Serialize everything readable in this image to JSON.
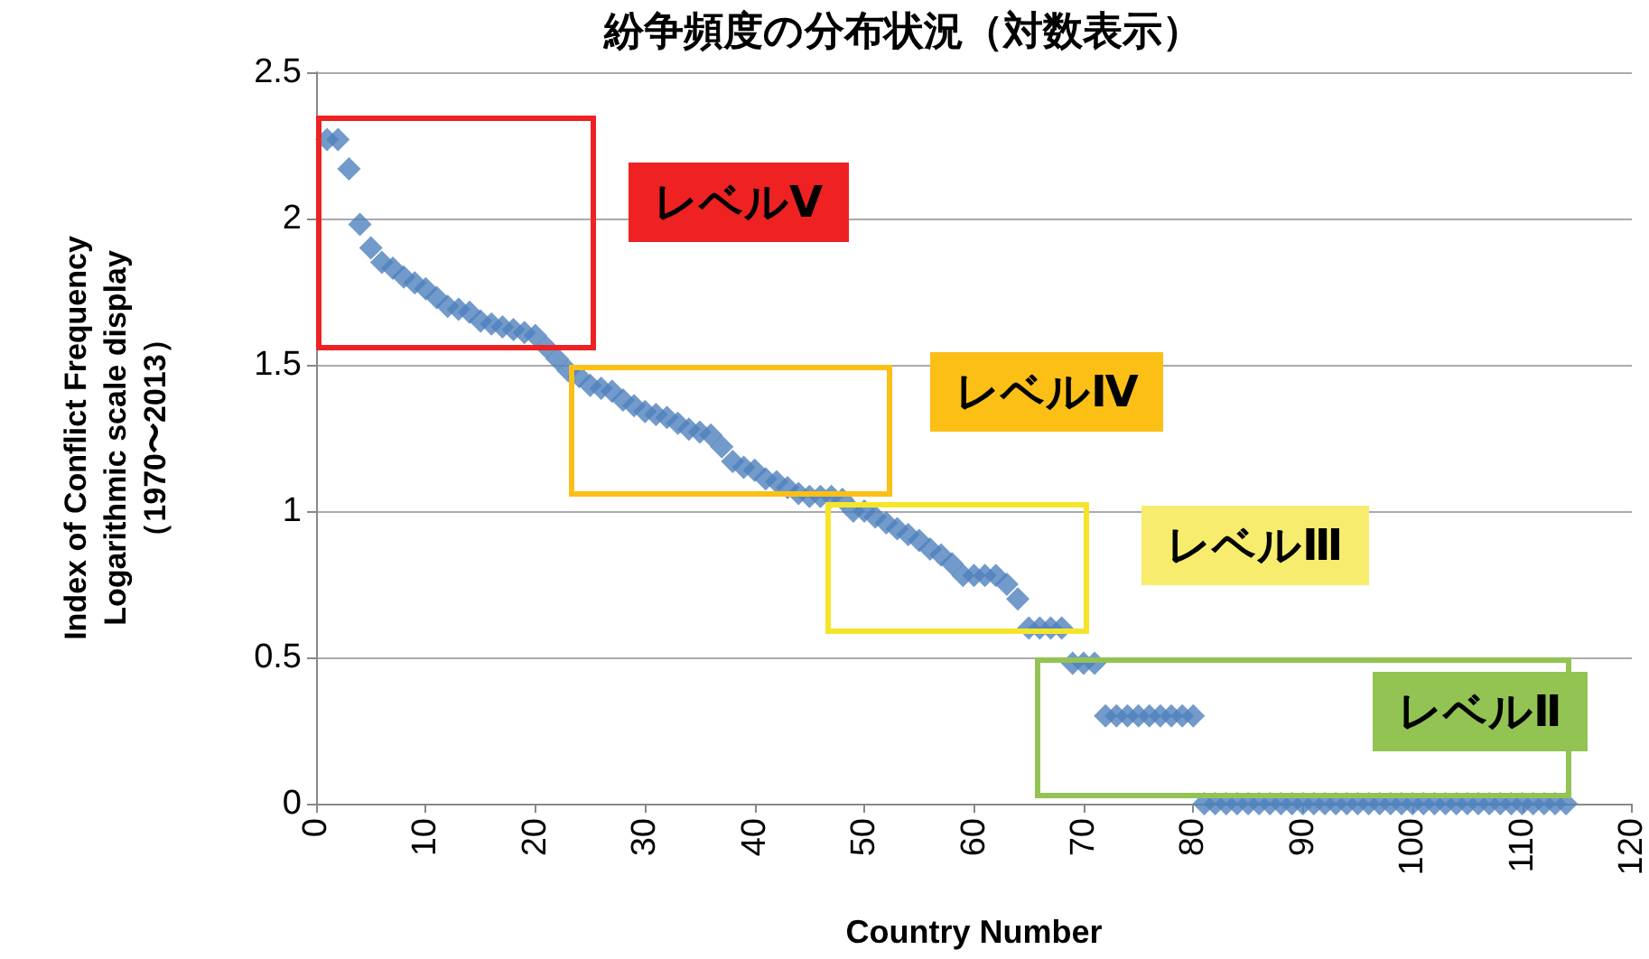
{
  "chart_data": {
    "type": "scatter",
    "title": "紛争頻度の分布状況（対数表示）",
    "xlabel": "Country Number",
    "ylabel": "Index of Conflict Frequency\nLogarithmic scale display\n（1970〜2013）",
    "annotations": [
      "レベルⅤ",
      "レベルⅣ",
      "レベルⅢ",
      "レベルⅡ"
    ],
    "xlim": [
      0,
      120
    ],
    "xticks": [
      0,
      10,
      20,
      30,
      40,
      50,
      60,
      70,
      80,
      90,
      100,
      110,
      120
    ],
    "ylim": [
      0,
      2.5
    ],
    "yticks": [
      0,
      0.5,
      1,
      1.5,
      2,
      2.5
    ],
    "grid": "y",
    "marker": "diamond",
    "series": [
      {
        "color": "#4f81bd",
        "x": [
          1,
          2,
          3,
          4,
          5,
          6,
          7,
          8,
          9,
          10,
          11,
          12,
          13,
          14,
          15,
          16,
          17,
          18,
          19,
          20,
          21,
          22,
          23,
          24,
          25,
          26,
          27,
          28,
          29,
          30,
          31,
          32,
          33,
          34,
          35,
          36,
          37,
          38,
          39,
          40,
          41,
          42,
          43,
          44,
          45,
          46,
          47,
          48,
          49,
          50,
          51,
          52,
          53,
          54,
          55,
          56,
          57,
          58,
          59,
          60,
          61,
          62,
          63,
          64,
          65,
          66,
          67,
          68,
          69,
          70,
          71,
          72,
          73,
          74,
          75,
          76,
          77,
          78,
          79,
          80,
          81,
          82,
          83,
          84,
          85,
          86,
          87,
          88,
          89,
          90,
          91,
          92,
          93,
          94,
          95,
          96,
          97,
          98,
          99,
          100,
          101,
          102,
          103,
          104,
          105,
          106,
          107,
          108,
          109,
          110,
          111,
          112,
          113,
          114
        ],
        "values": [
          2.27,
          2.27,
          2.17,
          1.98,
          1.9,
          1.85,
          1.83,
          1.8,
          1.78,
          1.76,
          1.73,
          1.7,
          1.69,
          1.68,
          1.65,
          1.64,
          1.63,
          1.62,
          1.61,
          1.6,
          1.56,
          1.52,
          1.48,
          1.46,
          1.43,
          1.42,
          1.41,
          1.38,
          1.36,
          1.34,
          1.33,
          1.32,
          1.3,
          1.28,
          1.27,
          1.26,
          1.22,
          1.17,
          1.15,
          1.14,
          1.11,
          1.1,
          1.08,
          1.06,
          1.05,
          1.05,
          1.05,
          1.04,
          1.0,
          1.0,
          0.98,
          0.96,
          0.94,
          0.92,
          0.9,
          0.87,
          0.85,
          0.82,
          0.78,
          0.78,
          0.78,
          0.78,
          0.75,
          0.7,
          0.6,
          0.6,
          0.6,
          0.6,
          0.48,
          0.48,
          0.48,
          0.3,
          0.3,
          0.3,
          0.3,
          0.3,
          0.3,
          0.3,
          0.3,
          0.3,
          0,
          0,
          0,
          0,
          0,
          0,
          0,
          0,
          0,
          0,
          0,
          0,
          0,
          0,
          0,
          0,
          0,
          0,
          0,
          0,
          0,
          0,
          0,
          0,
          0,
          0,
          0,
          0,
          0,
          0,
          0,
          0,
          0,
          0
        ]
      }
    ]
  }
}
